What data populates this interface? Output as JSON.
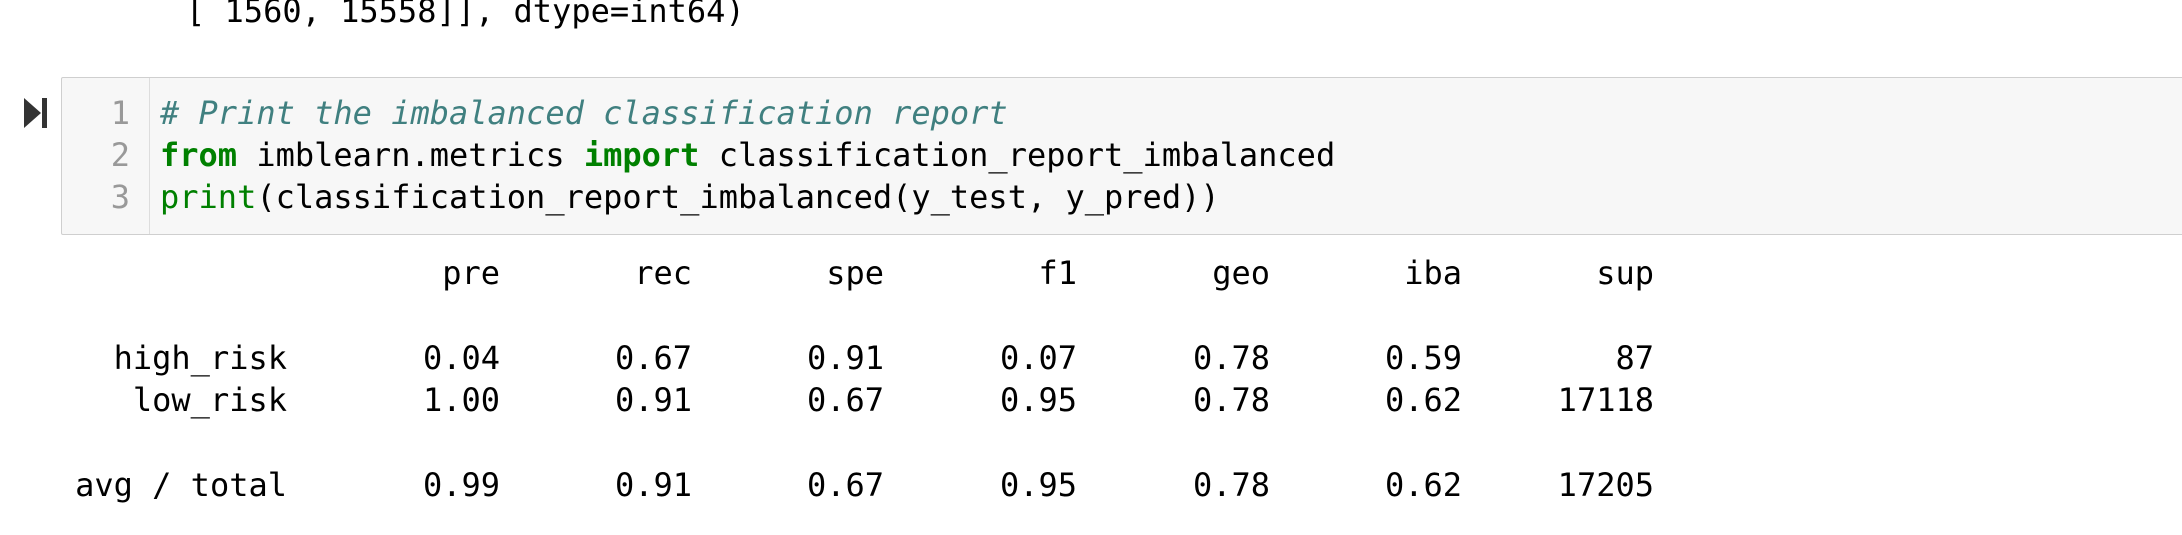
{
  "previous_output": {
    "text": "[ 1560, 15558]], dtype=int64)"
  },
  "cell": {
    "run_icon": "run-cell-icon",
    "line_numbers": [
      "1",
      "2",
      "3"
    ],
    "code": {
      "line1_comment": "# Print the imbalanced classification report",
      "line2_from": "from",
      "line2_module": " imblearn.metrics ",
      "line2_import": "import",
      "line2_name": " classification_report_imbalanced",
      "line3_print": "print",
      "line3_rest": "(classification_report_imbalanced(y_test, y_pred))"
    }
  },
  "report": {
    "headers": [
      "pre",
      "rec",
      "spe",
      "f1",
      "geo",
      "iba",
      "sup"
    ],
    "rows": [
      {
        "label": "high_risk",
        "values": [
          "0.04",
          "0.67",
          "0.91",
          "0.07",
          "0.78",
          "0.59",
          "87"
        ]
      },
      {
        "label": "low_risk",
        "values": [
          "1.00",
          "0.91",
          "0.67",
          "0.95",
          "0.78",
          "0.62",
          "17118"
        ]
      }
    ],
    "total": {
      "label": "avg / total",
      "values": [
        "0.99",
        "0.91",
        "0.67",
        "0.95",
        "0.78",
        "0.62",
        "17205"
      ]
    }
  },
  "colors": {
    "comment": "#408080",
    "keyword": "#008000",
    "cell_background": "#f7f7f7"
  }
}
